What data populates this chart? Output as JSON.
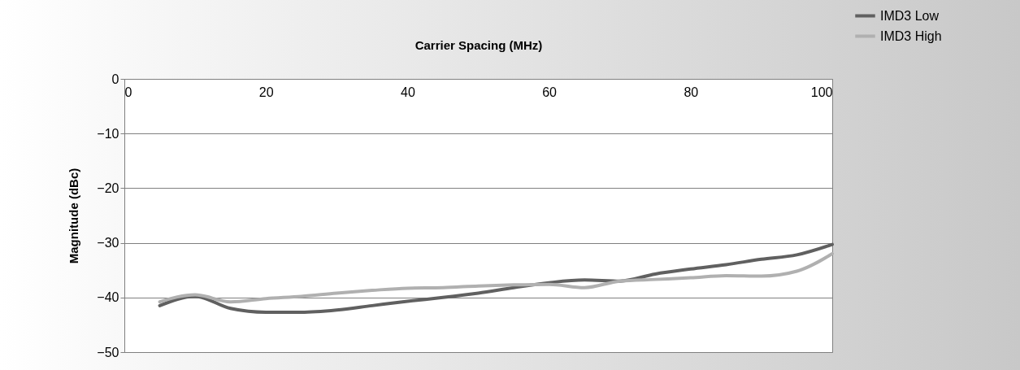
{
  "chart_data": {
    "type": "line",
    "xlabel": "Carrier Spacing (MHz)",
    "ylabel": "Magnitude (dBc)",
    "x": [
      5,
      10,
      15,
      20,
      25,
      30,
      35,
      40,
      45,
      50,
      55,
      60,
      65,
      70,
      75,
      80,
      85,
      90,
      95,
      100
    ],
    "series": [
      {
        "name": "IMD3 Low",
        "color": "#606060",
        "values": [
          -41.5,
          -39.8,
          -42,
          -42.7,
          -42.7,
          -42.3,
          -41.5,
          -40.7,
          -40,
          -39.2,
          -38.2,
          -37.3,
          -36.8,
          -37,
          -35.7,
          -34.8,
          -34,
          -33,
          -32.2,
          -30.3
        ]
      },
      {
        "name": "IMD3 High",
        "color": "#b0b0b0",
        "values": [
          -40.8,
          -39.5,
          -40.8,
          -40.2,
          -39.8,
          -39.2,
          -38.7,
          -38.3,
          -38.2,
          -37.9,
          -37.7,
          -37.6,
          -38.2,
          -37,
          -36.7,
          -36.4,
          -36,
          -36.1,
          -35.2,
          -32
        ]
      }
    ],
    "xlim": [
      0,
      100
    ],
    "xticks": [
      0,
      20,
      40,
      60,
      80,
      100
    ],
    "ylim": [
      -50,
      0
    ],
    "yticks": [
      -50,
      -40,
      -30,
      -20,
      -10,
      0
    ],
    "grid": "y",
    "legend": "top right",
    "marker": "none",
    "line_style": "solid"
  }
}
